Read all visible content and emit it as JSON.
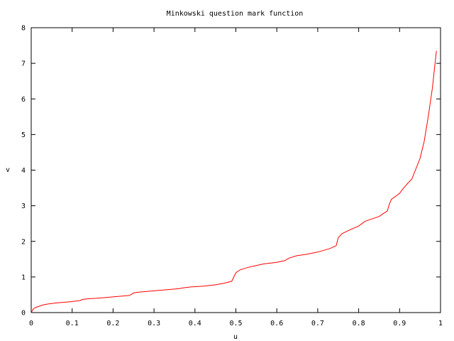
{
  "chart_data": {
    "type": "line",
    "title": "Minkowski question mark function",
    "xlabel": "u",
    "ylabel": "v",
    "xlim": [
      0,
      1
    ],
    "ylim": [
      0,
      8
    ],
    "xticks": [
      "0",
      "0.1",
      "0.2",
      "0.3",
      "0.4",
      "0.5",
      "0.6",
      "0.7",
      "0.8",
      "0.9",
      "1"
    ],
    "yticks": [
      "0",
      "1",
      "2",
      "3",
      "4",
      "5",
      "6",
      "7",
      "8"
    ],
    "grid": false,
    "legend": "none",
    "series_color": "#ff0000",
    "series": [
      {
        "x": [
          0.0,
          0.005,
          0.01,
          0.02,
          0.03,
          0.04,
          0.06,
          0.08,
          0.1,
          0.12,
          0.125,
          0.14,
          0.16,
          0.18,
          0.2,
          0.22,
          0.24,
          0.25,
          0.26,
          0.28,
          0.3,
          0.32,
          0.34,
          0.36,
          0.375,
          0.39,
          0.42,
          0.45,
          0.47,
          0.49,
          0.5,
          0.51,
          0.53,
          0.55,
          0.57,
          0.6,
          0.62,
          0.63,
          0.65,
          0.67,
          0.7,
          0.73,
          0.745,
          0.75,
          0.76,
          0.78,
          0.8,
          0.815,
          0.83,
          0.85,
          0.86,
          0.87,
          0.875,
          0.88,
          0.9,
          0.91,
          0.92,
          0.93,
          0.95,
          0.96,
          0.97,
          0.98,
          0.99
        ],
        "y": [
          0.0,
          0.1,
          0.14,
          0.18,
          0.22,
          0.24,
          0.27,
          0.29,
          0.31,
          0.34,
          0.37,
          0.39,
          0.4,
          0.42,
          0.44,
          0.46,
          0.48,
          0.55,
          0.57,
          0.59,
          0.61,
          0.63,
          0.65,
          0.67,
          0.7,
          0.72,
          0.74,
          0.78,
          0.82,
          0.88,
          1.12,
          1.2,
          1.27,
          1.32,
          1.37,
          1.41,
          1.46,
          1.53,
          1.6,
          1.63,
          1.7,
          1.8,
          1.88,
          2.1,
          2.22,
          2.33,
          2.43,
          2.56,
          2.62,
          2.7,
          2.78,
          2.85,
          3.05,
          3.18,
          3.35,
          3.5,
          3.63,
          3.75,
          4.33,
          4.8,
          5.5,
          6.3,
          7.35
        ]
      }
    ]
  }
}
